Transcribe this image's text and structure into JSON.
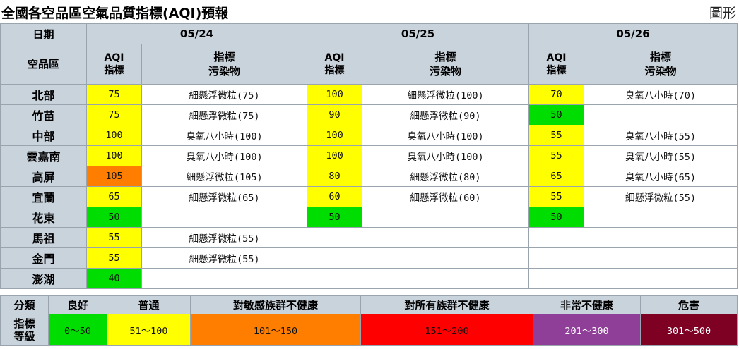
{
  "page": {
    "title": "全國各空品區空氣品質指標(AQI)預報",
    "chart_link": "圖形"
  },
  "header": {
    "date_label": "日期",
    "region_label": "空品區",
    "aqi_label_line1": "AQI",
    "aqi_label_line2": "指標",
    "pollutant_label_line1": "指標",
    "pollutant_label_line2": "污染物",
    "dates": [
      "05/24",
      "05/25",
      "05/26"
    ]
  },
  "colors": {
    "good": "#00dd00",
    "moderate": "#ffff00",
    "usg": "#ff7e00",
    "unhealthy": "#ff0000",
    "very_unhealthy": "#8f3f97",
    "hazardous": "#7e0023",
    "header_bg": "#c9d3dc"
  },
  "rows": [
    {
      "region": "北部",
      "days": [
        {
          "aqi": "75",
          "level": "moderate",
          "pollutant": "細懸浮微粒(75)"
        },
        {
          "aqi": "100",
          "level": "moderate",
          "pollutant": "細懸浮微粒(100)"
        },
        {
          "aqi": "70",
          "level": "moderate",
          "pollutant": "臭氧八小時(70)"
        }
      ]
    },
    {
      "region": "竹苗",
      "days": [
        {
          "aqi": "75",
          "level": "moderate",
          "pollutant": "細懸浮微粒(75)"
        },
        {
          "aqi": "90",
          "level": "moderate",
          "pollutant": "細懸浮微粒(90)"
        },
        {
          "aqi": "50",
          "level": "good",
          "pollutant": ""
        }
      ]
    },
    {
      "region": "中部",
      "days": [
        {
          "aqi": "100",
          "level": "moderate",
          "pollutant": "臭氧八小時(100)"
        },
        {
          "aqi": "100",
          "level": "moderate",
          "pollutant": "臭氧八小時(100)"
        },
        {
          "aqi": "55",
          "level": "moderate",
          "pollutant": "臭氧八小時(55)"
        }
      ]
    },
    {
      "region": "雲嘉南",
      "days": [
        {
          "aqi": "100",
          "level": "moderate",
          "pollutant": "臭氧八小時(100)"
        },
        {
          "aqi": "100",
          "level": "moderate",
          "pollutant": "臭氧八小時(100)"
        },
        {
          "aqi": "55",
          "level": "moderate",
          "pollutant": "臭氧八小時(55)"
        }
      ]
    },
    {
      "region": "高屏",
      "days": [
        {
          "aqi": "105",
          "level": "usg",
          "pollutant": "細懸浮微粒(105)"
        },
        {
          "aqi": "80",
          "level": "moderate",
          "pollutant": "細懸浮微粒(80)"
        },
        {
          "aqi": "65",
          "level": "moderate",
          "pollutant": "臭氧八小時(65)"
        }
      ]
    },
    {
      "region": "宜蘭",
      "days": [
        {
          "aqi": "65",
          "level": "moderate",
          "pollutant": "細懸浮微粒(65)"
        },
        {
          "aqi": "60",
          "level": "moderate",
          "pollutant": "細懸浮微粒(60)"
        },
        {
          "aqi": "55",
          "level": "moderate",
          "pollutant": "細懸浮微粒(55)"
        }
      ]
    },
    {
      "region": "花東",
      "days": [
        {
          "aqi": "50",
          "level": "good",
          "pollutant": ""
        },
        {
          "aqi": "50",
          "level": "good",
          "pollutant": ""
        },
        {
          "aqi": "50",
          "level": "good",
          "pollutant": ""
        }
      ]
    },
    {
      "region": "馬祖",
      "days": [
        {
          "aqi": "55",
          "level": "moderate",
          "pollutant": "細懸浮微粒(55)"
        },
        {
          "aqi": "",
          "level": "",
          "pollutant": ""
        },
        {
          "aqi": "",
          "level": "",
          "pollutant": ""
        }
      ]
    },
    {
      "region": "金門",
      "days": [
        {
          "aqi": "55",
          "level": "moderate",
          "pollutant": "細懸浮微粒(55)"
        },
        {
          "aqi": "",
          "level": "",
          "pollutant": ""
        },
        {
          "aqi": "",
          "level": "",
          "pollutant": ""
        }
      ]
    },
    {
      "region": "澎湖",
      "days": [
        {
          "aqi": "40",
          "level": "good",
          "pollutant": ""
        },
        {
          "aqi": "",
          "level": "",
          "pollutant": ""
        },
        {
          "aqi": "",
          "level": "",
          "pollutant": ""
        }
      ]
    }
  ],
  "legend": {
    "category_label": "分類",
    "index_label_line1": "指標",
    "index_label_line2": "等級",
    "levels": [
      {
        "name": "良好",
        "range": "0～50",
        "level": "good"
      },
      {
        "name": "普通",
        "range": "51～100",
        "level": "moderate"
      },
      {
        "name": "對敏感族群不健康",
        "range": "101～150",
        "level": "usg"
      },
      {
        "name": "對所有族群不健康",
        "range": "151～200",
        "level": "unhealthy"
      },
      {
        "name": "非常不健康",
        "range": "201～300",
        "level": "very_unhealthy"
      },
      {
        "name": "危害",
        "range": "301～500",
        "level": "hazardous"
      }
    ]
  }
}
